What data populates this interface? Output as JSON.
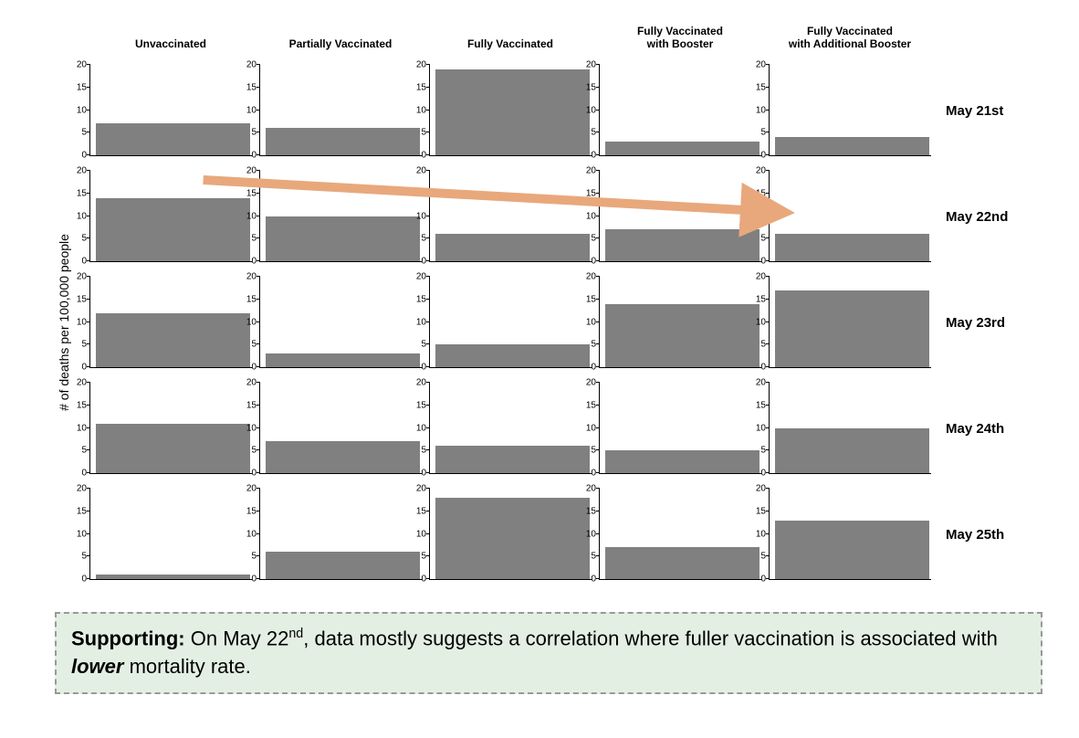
{
  "chart": {
    "type": "bar-small-multiples",
    "columns": [
      "Unvaccinated",
      "Partially Vaccinated",
      "Fully Vaccinated",
      "Fully Vaccinated\nwith Booster",
      "Fully Vaccinated\nwith Additional Booster"
    ],
    "rows": [
      "May 21st",
      "May 22nd",
      "May 23rd",
      "May 24th",
      "May 25th"
    ],
    "y_axis_label": "# of deaths per 100,000 people",
    "ylim": [
      0,
      20
    ],
    "yticks": [
      0,
      5,
      10,
      15,
      20
    ],
    "values": [
      [
        7,
        6,
        19,
        3,
        4
      ],
      [
        14,
        10,
        6,
        7,
        6
      ],
      [
        12,
        3,
        5,
        14,
        17
      ],
      [
        11,
        7,
        6,
        5,
        10
      ],
      [
        1,
        6,
        18,
        7,
        13
      ]
    ],
    "bar_color": "#808080",
    "axis_color": "#000000",
    "background_color": "#ffffff",
    "tick_fontsize": 10,
    "header_fontsize": 12,
    "row_label_fontsize": 15,
    "arrow": {
      "color": "#e8a87c",
      "stroke_width": 10,
      "row_index": 1,
      "start_col": 0,
      "end_col": 4,
      "start_y_value": 18,
      "end_y_value": 11
    }
  },
  "caption": {
    "lead": "Supporting:",
    "body_before": " On May 22",
    "sup": "nd",
    "body_mid": ", data mostly suggests a correlation where fuller vaccination is associated with ",
    "emph": "lower",
    "body_after": " mortality rate.",
    "background_color": "#e4efe4",
    "border_color": "#999999"
  }
}
